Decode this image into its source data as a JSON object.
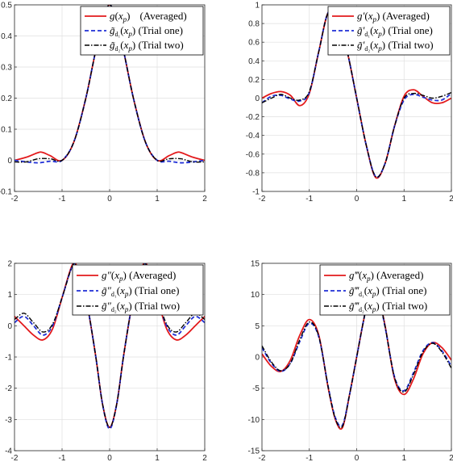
{
  "chart_data": [
    {
      "type": "line",
      "panel": "top-left",
      "xlim": [
        -2,
        2
      ],
      "ylim": [
        -0.1,
        0.5
      ],
      "xticks": [
        "-2",
        "-1",
        "0",
        "1",
        "2"
      ],
      "yticks": [
        "-0.1",
        "0",
        "0.1",
        "0.2",
        "0.3",
        "0.4",
        "0.5"
      ],
      "grid": true,
      "legend_placement": "top-right",
      "series": [
        {
          "name": "g(x_p) (Averaged)",
          "color": "#e31a1c",
          "style": "solid",
          "x": [
            -2,
            -1.75,
            -1.5,
            -1.4,
            -1.25,
            -1,
            -0.75,
            -0.5,
            -0.25,
            0,
            0.25,
            0.5,
            0.75,
            1,
            1.25,
            1.4,
            1.5,
            1.75,
            2
          ],
          "y": [
            0,
            0.01,
            0.025,
            0.025,
            0.015,
            0.0,
            0.06,
            0.2,
            0.38,
            0.5,
            0.38,
            0.2,
            0.06,
            0.0,
            0.015,
            0.025,
            0.025,
            0.01,
            0
          ]
        },
        {
          "name": "g̃_{d1}(x_p) (Trial one)",
          "color": "#1f2fd6",
          "style": "dashed",
          "x": [
            -2,
            -1.75,
            -1.5,
            -1.25,
            -1,
            -0.75,
            -0.5,
            -0.25,
            0,
            0.25,
            0.5,
            0.75,
            1,
            1.25,
            1.5,
            1.75,
            2
          ],
          "y": [
            0,
            -0.005,
            -0.008,
            -0.003,
            0.0,
            0.06,
            0.2,
            0.38,
            0.5,
            0.38,
            0.2,
            0.06,
            0.0,
            -0.003,
            -0.008,
            -0.005,
            0
          ]
        },
        {
          "name": "g̃_{d2}(x_p) (Trial two)",
          "color": "#000000",
          "style": "dashdot",
          "x": [
            -2,
            -1.75,
            -1.5,
            -1.25,
            -1,
            -0.75,
            -0.5,
            -0.25,
            0,
            0.25,
            0.5,
            0.75,
            1,
            1.25,
            1.5,
            1.75,
            2
          ],
          "y": [
            -0.005,
            -0.005,
            0.005,
            0.005,
            0.0,
            0.06,
            0.2,
            0.38,
            0.5,
            0.38,
            0.2,
            0.06,
            0.0,
            0.005,
            0.005,
            -0.005,
            -0.005
          ]
        }
      ]
    },
    {
      "type": "line",
      "panel": "top-right",
      "xlim": [
        -2,
        2
      ],
      "ylim": [
        -1,
        1
      ],
      "xticks": [
        "-2",
        "-1",
        "0",
        "1",
        "2"
      ],
      "yticks": [
        "-1",
        "-0.8",
        "-0.6",
        "-0.4",
        "-0.2",
        "0",
        "0.2",
        "0.4",
        "0.6",
        "0.8",
        "1"
      ],
      "grid": true,
      "legend_placement": "top-right",
      "series": [
        {
          "name": "g′(x_p) (Averaged)",
          "color": "#e31a1c",
          "style": "solid",
          "x": [
            -2,
            -1.8,
            -1.6,
            -1.4,
            -1.2,
            -1,
            -0.8,
            -0.6,
            -0.4,
            -0.2,
            0,
            0.2,
            0.4,
            0.6,
            0.8,
            1,
            1.2,
            1.4,
            1.6,
            1.8,
            2
          ],
          "y": [
            0,
            0.05,
            0.07,
            0.03,
            -0.08,
            0.05,
            0.5,
            0.92,
            0.85,
            0.5,
            0,
            -0.5,
            -0.85,
            -0.7,
            -0.3,
            0.02,
            0.09,
            0.02,
            -0.05,
            -0.05,
            0
          ]
        },
        {
          "name": "g̃′_{d1}(x_p) (Trial one)",
          "color": "#1f2fd6",
          "style": "dashed",
          "x": [
            -2,
            -1.8,
            -1.6,
            -1.4,
            -1.2,
            -1,
            -0.8,
            -0.6,
            -0.4,
            -0.2,
            0,
            0.2,
            0.4,
            0.6,
            0.8,
            1,
            1.2,
            1.4,
            1.6,
            1.8,
            2
          ],
          "y": [
            -0.05,
            0.02,
            0.03,
            -0.01,
            -0.03,
            0.06,
            0.5,
            0.92,
            0.85,
            0.5,
            0,
            -0.5,
            -0.84,
            -0.7,
            -0.3,
            -0.02,
            0.04,
            0.01,
            -0.02,
            -0.02,
            0.05
          ]
        },
        {
          "name": "g̃′_{d2}(x_p) (Trial two)",
          "color": "#000000",
          "style": "dashdot",
          "x": [
            -2,
            -1.8,
            -1.6,
            -1.4,
            -1.2,
            -1,
            -0.8,
            -0.6,
            -0.4,
            -0.2,
            0,
            0.2,
            0.4,
            0.6,
            0.8,
            1,
            1.2,
            1.4,
            1.6,
            1.8,
            2
          ],
          "y": [
            -0.05,
            0.0,
            0.04,
            0.0,
            -0.02,
            0.07,
            0.5,
            0.92,
            0.85,
            0.5,
            0,
            -0.5,
            -0.84,
            -0.7,
            -0.3,
            0.0,
            0.05,
            0.03,
            0.0,
            0.02,
            0.06
          ]
        }
      ]
    },
    {
      "type": "line",
      "panel": "bottom-left",
      "xlim": [
        -2,
        2
      ],
      "ylim": [
        -4,
        2
      ],
      "xticks": [
        "-2",
        "-1",
        "0",
        "1",
        "2"
      ],
      "yticks": [
        "-4",
        "-3",
        "-2",
        "-1",
        "0",
        "1",
        "2"
      ],
      "grid": true,
      "legend_placement": "top-right",
      "series": [
        {
          "name": "g″(x_p) (Averaged)",
          "color": "#e31a1c",
          "style": "solid",
          "x": [
            -2,
            -1.8,
            -1.6,
            -1.4,
            -1.2,
            -1,
            -0.8,
            -0.7,
            -0.5,
            -0.3,
            -0.15,
            0,
            0.15,
            0.3,
            0.5,
            0.7,
            0.8,
            1,
            1.2,
            1.4,
            1.6,
            1.8,
            2
          ],
          "y": [
            0.3,
            0.0,
            -0.3,
            -0.45,
            -0.1,
            0.9,
            1.9,
            1.95,
            0.9,
            -0.9,
            -2.5,
            -3.25,
            -2.5,
            -0.9,
            0.9,
            1.95,
            1.9,
            0.9,
            -0.1,
            -0.45,
            -0.3,
            0.0,
            0.3
          ]
        },
        {
          "name": "g̃″_{d1}(x_p) (Trial one)",
          "color": "#1f2fd6",
          "style": "dashed",
          "x": [
            -2,
            -1.8,
            -1.6,
            -1.4,
            -1.2,
            -1,
            -0.8,
            -0.7,
            -0.5,
            -0.3,
            -0.15,
            0,
            0.15,
            0.3,
            0.5,
            0.7,
            0.8,
            1,
            1.2,
            1.4,
            1.6,
            1.8,
            2
          ],
          "y": [
            0.1,
            0.3,
            0.0,
            -0.3,
            0.0,
            0.9,
            1.85,
            1.9,
            0.9,
            -0.9,
            -2.5,
            -3.3,
            -2.5,
            -0.9,
            0.9,
            1.9,
            1.85,
            0.9,
            0.0,
            -0.3,
            0.0,
            0.3,
            0.1
          ]
        },
        {
          "name": "g̃″_{d2}(x_p) (Trial two)",
          "color": "#000000",
          "style": "dashdot",
          "x": [
            -2,
            -1.8,
            -1.6,
            -1.4,
            -1.2,
            -1,
            -0.8,
            -0.7,
            -0.5,
            -0.3,
            -0.15,
            0,
            0.15,
            0.3,
            0.5,
            0.7,
            0.8,
            1,
            1.2,
            1.4,
            1.6,
            1.8,
            2
          ],
          "y": [
            0.2,
            0.4,
            0.1,
            -0.2,
            0.05,
            0.9,
            1.85,
            1.9,
            0.9,
            -0.9,
            -2.5,
            -3.25,
            -2.5,
            -0.9,
            0.9,
            1.9,
            1.85,
            0.9,
            0.05,
            -0.2,
            0.1,
            0.4,
            0.2
          ]
        }
      ]
    },
    {
      "type": "line",
      "panel": "bottom-right",
      "xlim": [
        -2,
        2
      ],
      "ylim": [
        -15,
        15
      ],
      "xticks": [
        "-2",
        "-1",
        "0",
        "1",
        "2"
      ],
      "yticks": [
        "-15",
        "-10",
        "-5",
        "0",
        "5",
        "10",
        "15"
      ],
      "grid": true,
      "legend_placement": "top-right",
      "series": [
        {
          "name": "g‴(x_p) (Averaged)",
          "color": "#e31a1c",
          "style": "solid",
          "x": [
            -2,
            -1.8,
            -1.6,
            -1.4,
            -1.2,
            -1,
            -0.8,
            -0.6,
            -0.45,
            -0.3,
            -0.15,
            0,
            0.15,
            0.3,
            0.45,
            0.6,
            0.8,
            1,
            1.2,
            1.4,
            1.6,
            1.8,
            2
          ],
          "y": [
            0.5,
            -1.5,
            -2.3,
            -0.5,
            3.5,
            6.0,
            3.5,
            -5.0,
            -10.0,
            -11.3,
            -6.0,
            0,
            6.0,
            11.3,
            10.0,
            5.0,
            -3.5,
            -6.0,
            -3.5,
            0.5,
            2.3,
            1.5,
            -0.5
          ]
        },
        {
          "name": "g̃‴_{d1}(x_p) (Trial one)",
          "color": "#1f2fd6",
          "style": "dashed",
          "x": [
            -2,
            -1.8,
            -1.6,
            -1.4,
            -1.2,
            -1,
            -0.8,
            -0.6,
            -0.45,
            -0.3,
            -0.15,
            0,
            0.15,
            0.3,
            0.45,
            0.6,
            0.8,
            1,
            1.2,
            1.4,
            1.6,
            1.8,
            2
          ],
          "y": [
            1.5,
            -1.0,
            -2.3,
            -1.0,
            2.5,
            5.4,
            3.2,
            -4.8,
            -9.7,
            -10.9,
            -6.0,
            0,
            6.0,
            10.9,
            9.7,
            4.8,
            -3.2,
            -5.4,
            -2.5,
            1.0,
            2.3,
            1.0,
            -1.5
          ]
        },
        {
          "name": "g̃‴_{d2}(x_p) (Trial two)",
          "color": "#000000",
          "style": "dashdot",
          "x": [
            -2,
            -1.8,
            -1.6,
            -1.4,
            -1.2,
            -1,
            -0.8,
            -0.6,
            -0.45,
            -0.3,
            -0.15,
            0,
            0.15,
            0.3,
            0.45,
            0.6,
            0.8,
            1,
            1.2,
            1.4,
            1.6,
            1.8,
            2
          ],
          "y": [
            1.8,
            -0.8,
            -2.2,
            -1.0,
            2.8,
            5.6,
            3.3,
            -4.9,
            -9.9,
            -11.1,
            -6.0,
            0,
            6.0,
            11.1,
            9.9,
            4.9,
            -3.3,
            -5.6,
            -2.8,
            0.8,
            2.2,
            0.8,
            -1.8
          ]
        }
      ]
    }
  ]
}
